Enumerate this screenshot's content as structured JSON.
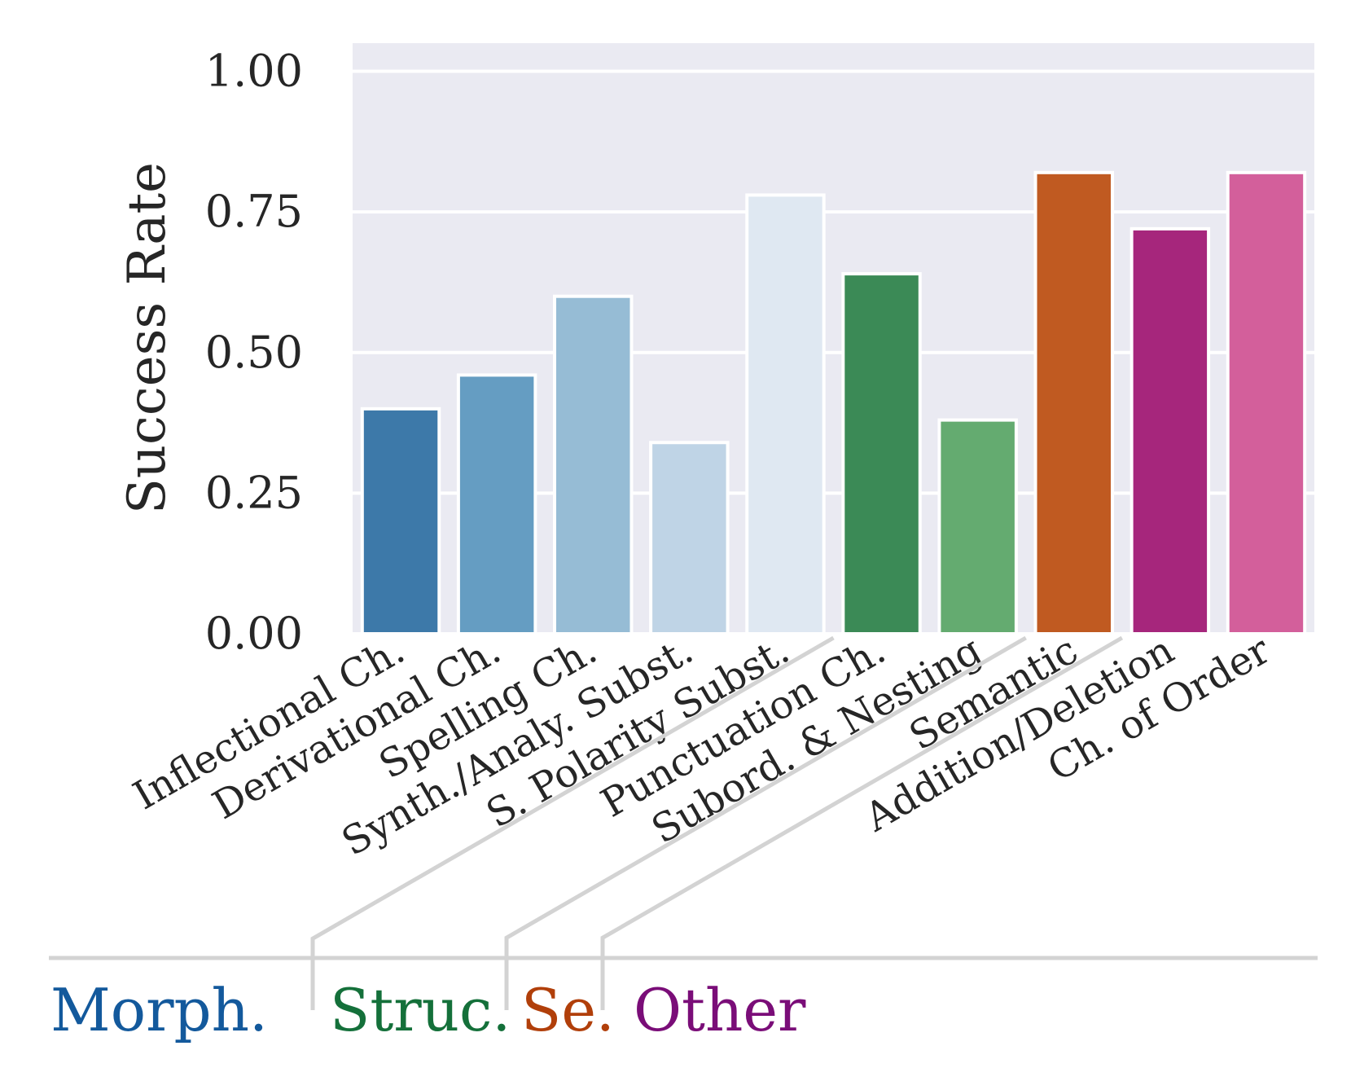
{
  "chart_data": {
    "type": "bar",
    "title": "",
    "xlabel": "",
    "ylabel": "Success Rate",
    "ylim": [
      0,
      1.05
    ],
    "yticks": [
      "0.00",
      "0.25",
      "0.50",
      "0.75",
      "1.00"
    ],
    "ytick_values": [
      0,
      0.25,
      0.5,
      0.75,
      1.0
    ],
    "grid": true,
    "categories": [
      "Inflectional Ch.",
      "Derivational Ch.",
      "Spelling Ch.",
      "Synth./Analy. Subst.",
      "S. Polarity Subst.",
      "Punctuation Ch.",
      "Subord. & Nesting",
      "Semantic",
      "Addition/Deletion",
      "Ch. of Order"
    ],
    "values": [
      0.4,
      0.46,
      0.6,
      0.34,
      0.78,
      0.64,
      0.38,
      0.82,
      0.72,
      0.82
    ],
    "bar_colors": [
      "#3d79a9",
      "#659dc2",
      "#96bcd5",
      "#bfd4e6",
      "#dfe8f2",
      "#3b8a56",
      "#64ab70",
      "#c05a21",
      "#a6267c",
      "#d35f9b"
    ],
    "groups": [
      {
        "label": "Morph.",
        "color": "#13599c"
      },
      {
        "label": "Struc.",
        "color": "#14703a"
      },
      {
        "label": "Se.",
        "color": "#b13f0a"
      },
      {
        "label": "Other",
        "color": "#7a0d78"
      }
    ],
    "background": "#eaeaf2",
    "separator_color": "#d3d3d3"
  }
}
